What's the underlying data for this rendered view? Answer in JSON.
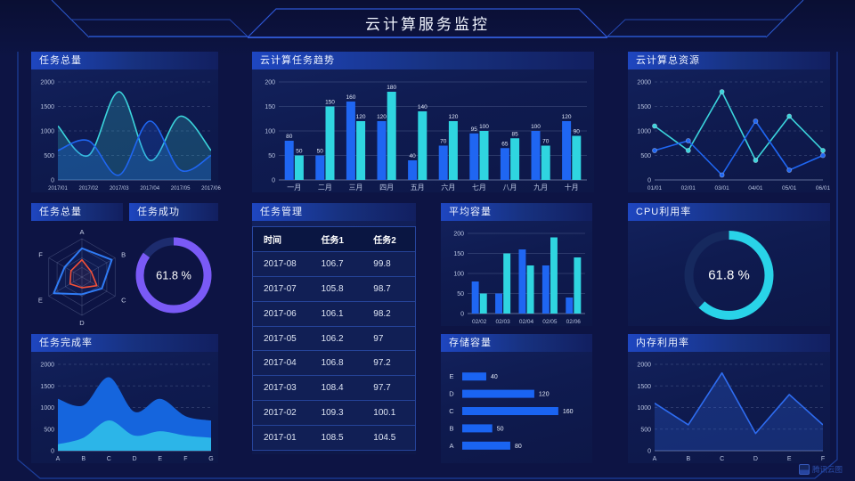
{
  "header": {
    "title": "云计算服务监控"
  },
  "watermark": {
    "label": "腾讯云图"
  },
  "panels": {
    "task_total_trend": {
      "title": "任务总量",
      "chart_data": {
        "type": "line",
        "smooth": true,
        "fill": true,
        "fillOpacity": 0.22,
        "grid": "dash",
        "xfs": 6,
        "x": [
          "2017/01",
          "2017/02",
          "2017/03",
          "2017/04",
          "2017/05",
          "2017/06"
        ],
        "yticks": [
          0,
          500,
          1000,
          1500,
          2000
        ],
        "ylim": [
          0,
          2000
        ],
        "series": [
          {
            "name": "series-cyan",
            "color": "#3bd4dc",
            "values": [
              1100,
              500,
              1800,
              400,
              1300,
              600
            ]
          },
          {
            "name": "series-blue",
            "color": "#1f66f2",
            "values": [
              600,
              800,
              100,
              1200,
              200,
              500
            ]
          }
        ]
      }
    },
    "cloud_task_trend": {
      "title": "云计算任务趋势",
      "chart_data": {
        "type": "bar",
        "labels": true,
        "grid": "solid",
        "xfs": 8,
        "x": [
          "一月",
          "二月",
          "三月",
          "四月",
          "五月",
          "六月",
          "七月",
          "八月",
          "九月",
          "十月"
        ],
        "yticks": [
          0,
          50,
          100,
          150,
          200
        ],
        "ylim": [
          0,
          200
        ],
        "series": [
          {
            "name": "任务1",
            "color": "#1f66f2",
            "values": [
              80,
              50,
              160,
              120,
              40,
              70,
              95,
              65,
              100,
              120
            ]
          },
          {
            "name": "任务2",
            "color": "#2fd5e0",
            "values": [
              50,
              150,
              120,
              180,
              140,
              120,
              100,
              85,
              70,
              90
            ]
          }
        ]
      }
    },
    "cloud_resources": {
      "title": "云计算总资源",
      "chart_data": {
        "type": "line",
        "smooth": false,
        "markers": true,
        "grid": "dash",
        "xfs": 6.5,
        "x": [
          "01/01",
          "02/01",
          "03/01",
          "04/01",
          "05/01",
          "06/01"
        ],
        "yticks": [
          0,
          500,
          1000,
          1500,
          2000
        ],
        "ylim": [
          0,
          2000
        ],
        "series": [
          {
            "name": "series-cyan",
            "color": "#3bd4dc",
            "values": [
              1100,
              600,
              1800,
              400,
              1300,
              600
            ]
          },
          {
            "name": "series-blue",
            "color": "#1f66f2",
            "values": [
              600,
              800,
              100,
              1200,
              200,
              500
            ]
          }
        ]
      }
    },
    "task_total_radar": {
      "title": "任务总量",
      "chart_data": {
        "type": "radar",
        "max": 100,
        "indicators": [
          "A",
          "B",
          "C",
          "D",
          "E",
          "F"
        ],
        "series": [
          {
            "name": "blue",
            "color": "#2f7bf5",
            "lw": 2,
            "values": [
              75,
              90,
              60,
              45,
              85,
              52
            ]
          },
          {
            "name": "red",
            "color": "#f25038",
            "lw": 1.6,
            "values": [
              45,
              28,
              45,
              28,
              36,
              33
            ]
          }
        ]
      }
    },
    "task_success": {
      "title": "任务成功",
      "chart_data": {
        "type": "donut",
        "value": 61.8,
        "display": "61.8 %",
        "arc_percent": 85,
        "color": "#7a5af6",
        "track": "#1d2c6e"
      }
    },
    "task_management": {
      "title": "任务管理",
      "table": {
        "headers": [
          "时间",
          "任务1",
          "任务2"
        ],
        "rows": [
          [
            "2017-08",
            "106.7",
            "99.8"
          ],
          [
            "2017-07",
            "105.8",
            "98.7"
          ],
          [
            "2017-06",
            "106.1",
            "98.2"
          ],
          [
            "2017-05",
            "106.2",
            "97"
          ],
          [
            "2017-04",
            "106.8",
            "97.2"
          ],
          [
            "2017-03",
            "108.4",
            "97.7"
          ],
          [
            "2017-02",
            "109.3",
            "100.1"
          ],
          [
            "2017-01",
            "108.5",
            "104.5"
          ]
        ]
      }
    },
    "avg_capacity": {
      "title": "平均容量",
      "chart_data": {
        "type": "bar",
        "labels": false,
        "grid": "solid",
        "xfs": 6.5,
        "x": [
          "02/02",
          "02/03",
          "02/04",
          "02/05",
          "02/06"
        ],
        "yticks": [
          0,
          50,
          100,
          150,
          200
        ],
        "ylim": [
          0,
          200
        ],
        "series": [
          {
            "name": "blue",
            "color": "#1f66f2",
            "values": [
              80,
              50,
              160,
              120,
              40
            ]
          },
          {
            "name": "cyan",
            "color": "#2fd5e0",
            "values": [
              50,
              150,
              120,
              190,
              140
            ]
          }
        ]
      }
    },
    "cpu_usage": {
      "title": "CPU利用率",
      "chart_data": {
        "type": "donut",
        "value": 61.8,
        "display": "61.8 %",
        "arc_percent": 61.8,
        "color": "#29d3e8",
        "track": "#16295e"
      }
    },
    "task_completion": {
      "title": "任务完成率",
      "chart_data": {
        "type": "line",
        "smooth": true,
        "fill": true,
        "grid": "dash",
        "xfs": 7,
        "x": [
          "A",
          "B",
          "C",
          "D",
          "E",
          "F",
          "G"
        ],
        "yticks": [
          0,
          500,
          1000,
          1500,
          2000
        ],
        "ylim": [
          0,
          2000
        ],
        "series": [
          {
            "name": "blue-area",
            "color": "#1565dd",
            "values": [
              1200,
              1050,
              1700,
              900,
              1200,
              800,
              700
            ],
            "fillOpacity": 1,
            "stroke": false
          },
          {
            "name": "cyan-area",
            "color": "#2cb5e8",
            "values": [
              150,
              300,
              700,
              350,
              450,
              350,
              300
            ],
            "fillOpacity": 1,
            "stroke": false
          }
        ]
      }
    },
    "storage_capacity": {
      "title": "存储容量",
      "chart_data": {
        "type": "hbar",
        "color": "#1a64f2",
        "xmax": 175,
        "categories": [
          "E",
          "D",
          "C",
          "B",
          "A"
        ],
        "values": [
          40,
          120,
          160,
          50,
          80
        ]
      }
    },
    "memory_usage": {
      "title": "内存利用率",
      "chart_data": {
        "type": "line",
        "smooth": false,
        "fill": true,
        "fillOpacity": 0.25,
        "grid": "dash",
        "xfs": 7,
        "x": [
          "A",
          "B",
          "C",
          "D",
          "E",
          "F"
        ],
        "yticks": [
          0,
          500,
          1000,
          1500,
          2000
        ],
        "ylim": [
          0,
          2000
        ],
        "series": [
          {
            "name": "blue",
            "color": "#2e6cf0",
            "values": [
              1100,
              600,
              1800,
              400,
              1300,
              600
            ]
          }
        ]
      }
    }
  }
}
